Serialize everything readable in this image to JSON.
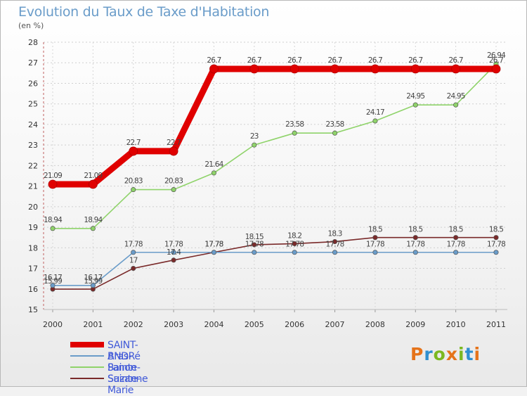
{
  "title": "Evolution du Taux de Taxe d'Habitation",
  "subtitle": "(en %)",
  "logo": {
    "text": "Proxiti",
    "colors": [
      "#e5731a",
      "#2f8fd0",
      "#7bb820",
      "#e5731a",
      "#7bb820",
      "#2f8fd0",
      "#e5731a"
    ]
  },
  "chart_data": {
    "type": "line",
    "title": "Evolution du Taux de Taxe d'Habitation",
    "ylabel": "(en %)",
    "x": [
      "2000",
      "2001",
      "2002",
      "2003",
      "2004",
      "2005",
      "2006",
      "2007",
      "2008",
      "2009",
      "2010",
      "2011"
    ],
    "ylim": [
      15,
      28
    ],
    "yticks": [
      "15",
      "16",
      "17",
      "18",
      "19",
      "20",
      "21",
      "22",
      "23",
      "24",
      "25",
      "26",
      "27",
      "28"
    ],
    "grid": true,
    "legend_position": "bottom-left",
    "series": [
      {
        "name": "SAINT-ANDRé",
        "color": "#e00000",
        "values": [
          21.09,
          21.09,
          22.7,
          22.7,
          26.7,
          26.7,
          26.7,
          26.7,
          26.7,
          26.7,
          26.7,
          26.7
        ],
        "labels": [
          "21.09",
          "21.09",
          "22.7",
          "22.7",
          "26.7",
          "26.7",
          "26.7",
          "26.7",
          "26.7",
          "26.7",
          "26.7",
          "26.7"
        ]
      },
      {
        "name": "Bras-Panon",
        "color": "#6a9cc9",
        "values": [
          16.17,
          16.17,
          17.78,
          17.78,
          17.78,
          17.78,
          17.78,
          17.78,
          17.78,
          17.78,
          17.78,
          17.78
        ],
        "labels": [
          "16.17",
          "16.17",
          "17.78",
          "17.78",
          "17.78",
          "17.78",
          "17.78",
          "17.78",
          "17.78",
          "17.78",
          "17.78",
          "17.78"
        ]
      },
      {
        "name": "Sainte-Suzanne",
        "color": "#8fd36a",
        "values": [
          18.94,
          18.94,
          20.83,
          20.83,
          21.64,
          23,
          23.58,
          23.58,
          24.17,
          24.95,
          24.95,
          26.94
        ],
        "labels": [
          "18.94",
          "18.94",
          "20.83",
          "20.83",
          "21.64",
          "23",
          "23.58",
          "23.58",
          "24.17",
          "24.95",
          "24.95",
          "26.94"
        ]
      },
      {
        "name": "Sainte-Marie",
        "color": "#7a2a2a",
        "values": [
          15.99,
          15.99,
          17,
          17.4,
          17.78,
          18.15,
          18.2,
          18.3,
          18.5,
          18.5,
          18.5,
          18.5
        ],
        "labels": [
          "15.99",
          "15.99",
          "17",
          "17.4",
          "17.78",
          "18.15",
          "18.2",
          "18.3",
          "18.5",
          "18.5",
          "18.5",
          "18.5"
        ]
      }
    ]
  }
}
